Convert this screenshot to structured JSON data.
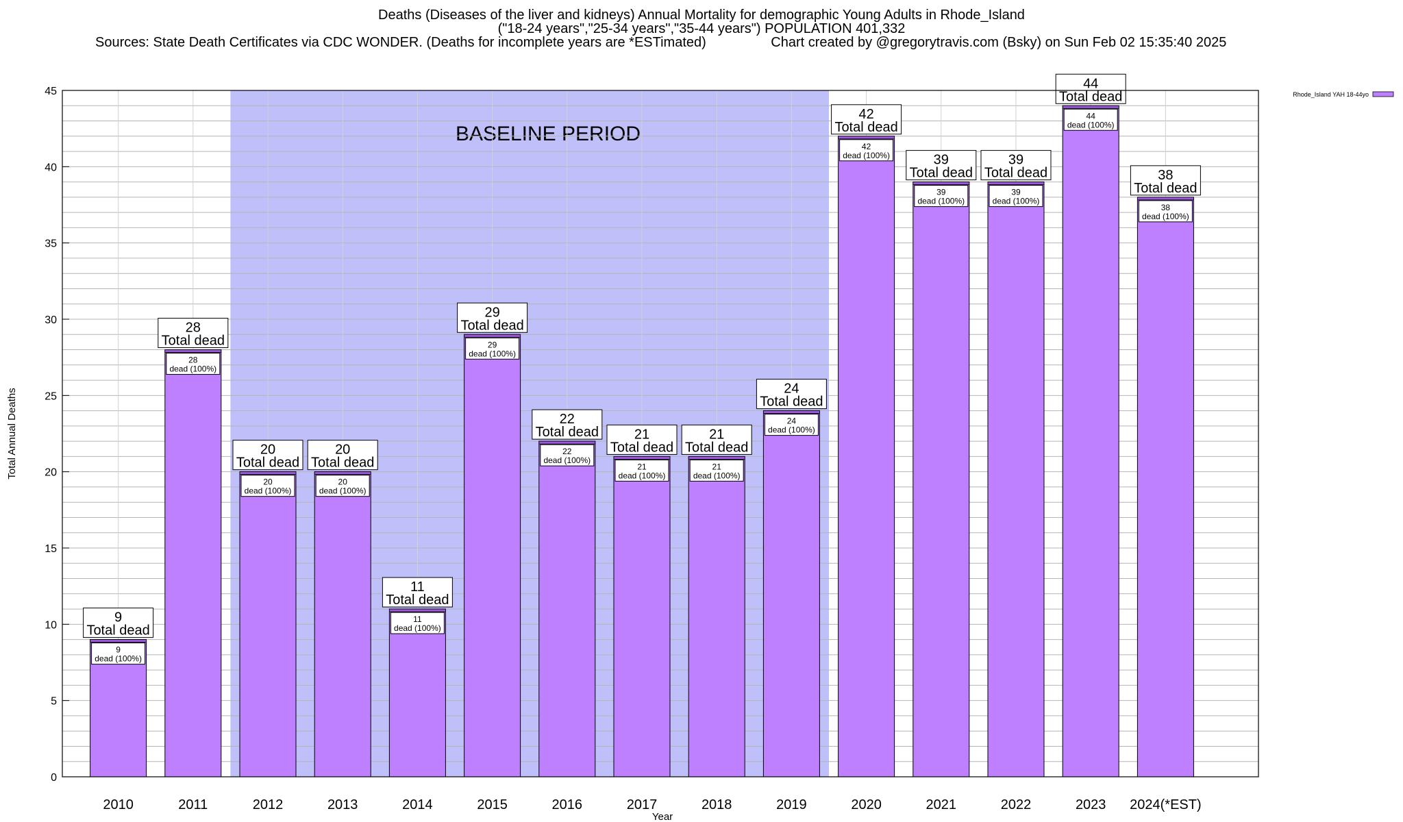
{
  "title": {
    "line1": "Deaths (Diseases of the liver and kidneys) Annual Mortality for demographic Young Adults in Rhode_Island",
    "line2": "(\"18-24 years\",\"25-34 years\",\"35-44 years\") POPULATION 401,332",
    "line3_left": "Sources: State Death Certificates via CDC WONDER. (Deaths for incomplete years are *ESTimated)",
    "line3_right": "Chart created by @gregorytravis.com (Bsky) on Sun Feb 02 15:35:40 2025"
  },
  "chart_data": {
    "type": "bar",
    "categories": [
      "2010",
      "2011",
      "2012",
      "2013",
      "2014",
      "2015",
      "2016",
      "2017",
      "2018",
      "2019",
      "2020",
      "2021",
      "2022",
      "2023",
      "2024(*EST)"
    ],
    "series": [
      {
        "name": "Rhode_Island YAH 18-44yo",
        "values": [
          9,
          28,
          20,
          20,
          11,
          29,
          22,
          21,
          21,
          24,
          42,
          39,
          39,
          44,
          38
        ]
      }
    ],
    "xlabel": "Year",
    "ylabel": "Total Annual Deaths",
    "ylim": [
      0,
      45
    ],
    "yticks": [
      0,
      5,
      10,
      15,
      20,
      25,
      30,
      35,
      40,
      45
    ],
    "grid": true,
    "legend_position": "top-right",
    "top_label_suffix": "Total dead",
    "inner_label_suffix": "dead (100%)",
    "baseline": {
      "label": "BASELINE PERIOD",
      "from": "2012",
      "to": "2019"
    },
    "colors": {
      "bar": "#bf80ff",
      "bar_top": "#9b59d9",
      "baseline_band": "#bfbffa"
    }
  }
}
